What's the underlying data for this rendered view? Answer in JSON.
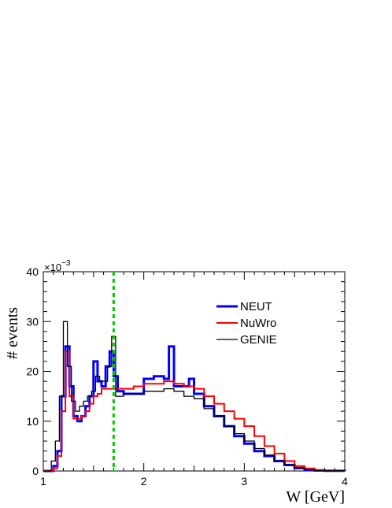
{
  "chart_data": {
    "type": "line",
    "xlabel": "W [GeV]",
    "ylabel": "# events",
    "y_multiplier": "×10",
    "y_exponent": "−3",
    "xlim": [
      1,
      4
    ],
    "ylim": [
      0,
      40
    ],
    "x_ticks": [
      "1",
      "2",
      "3",
      "4"
    ],
    "y_ticks": [
      "0",
      "10",
      "20",
      "30",
      "40"
    ],
    "legend_position": "top-right",
    "cut_line": {
      "x": 1.7,
      "color": "#00cc00"
    },
    "series": [
      {
        "name": "NEUT",
        "color": "#0000ff",
        "x": [
          1.0,
          1.1,
          1.14,
          1.18,
          1.22,
          1.26,
          1.3,
          1.34,
          1.38,
          1.42,
          1.46,
          1.5,
          1.54,
          1.58,
          1.62,
          1.66,
          1.7,
          1.74,
          1.8,
          1.9,
          2.0,
          2.1,
          2.2,
          2.25,
          2.3,
          2.35,
          2.4,
          2.45,
          2.5,
          2.6,
          2.7,
          2.8,
          2.9,
          3.0,
          3.1,
          3.2,
          3.3,
          3.4,
          3.5,
          3.6,
          3.7,
          3.8,
          4.0
        ],
        "y": [
          0,
          1,
          4,
          15,
          25,
          17,
          11,
          10,
          11,
          13,
          15,
          22,
          18,
          17,
          21,
          24,
          19,
          16,
          15.5,
          15.5,
          18.5,
          19,
          18.5,
          25,
          17,
          17,
          17,
          18.5,
          15.5,
          13,
          11,
          9,
          7,
          5.5,
          4,
          3,
          2,
          1.2,
          0.6,
          0.2,
          0.1,
          0.05,
          0
        ]
      },
      {
        "name": "NuWro",
        "color": "#ff0000",
        "x": [
          1.0,
          1.1,
          1.14,
          1.18,
          1.22,
          1.26,
          1.3,
          1.34,
          1.38,
          1.42,
          1.46,
          1.5,
          1.54,
          1.58,
          1.62,
          1.66,
          1.7,
          1.8,
          1.9,
          2.0,
          2.1,
          2.2,
          2.3,
          2.4,
          2.5,
          2.6,
          2.7,
          2.8,
          2.9,
          3.0,
          3.1,
          3.2,
          3.3,
          3.4,
          3.5,
          3.6,
          3.7,
          3.8,
          4.0
        ],
        "y": [
          0,
          0.5,
          3,
          12,
          24,
          15,
          10.5,
          10.5,
          11,
          12,
          13.5,
          15,
          15.5,
          16.5,
          16.5,
          16.5,
          16.5,
          16.5,
          17,
          17.5,
          17.5,
          18,
          17.5,
          17,
          16.5,
          15,
          13.5,
          12,
          10.5,
          9,
          7,
          5,
          3.5,
          2,
          1,
          0.5,
          0.2,
          0.05,
          0
        ]
      },
      {
        "name": "GENIE",
        "color": "#000000",
        "x": [
          1.0,
          1.08,
          1.12,
          1.16,
          1.2,
          1.24,
          1.28,
          1.32,
          1.36,
          1.4,
          1.44,
          1.48,
          1.52,
          1.56,
          1.6,
          1.64,
          1.68,
          1.72,
          1.8,
          1.9,
          2.0,
          2.1,
          2.2,
          2.3,
          2.4,
          2.5,
          2.6,
          2.7,
          2.8,
          2.9,
          3.0,
          3.1,
          3.2,
          3.3,
          3.4,
          3.5,
          3.6,
          3.7,
          3.8,
          4.0
        ],
        "y": [
          0,
          2,
          6,
          15,
          30,
          21,
          14,
          12,
          13,
          14,
          15,
          16,
          19,
          18,
          18,
          21,
          27,
          15,
          15.5,
          15.5,
          16,
          16,
          16.5,
          16,
          15,
          14.5,
          12.5,
          11,
          9,
          7.5,
          6,
          4.5,
          3.2,
          2,
          1.2,
          0.6,
          0.25,
          0.1,
          0.05,
          0
        ]
      }
    ]
  }
}
